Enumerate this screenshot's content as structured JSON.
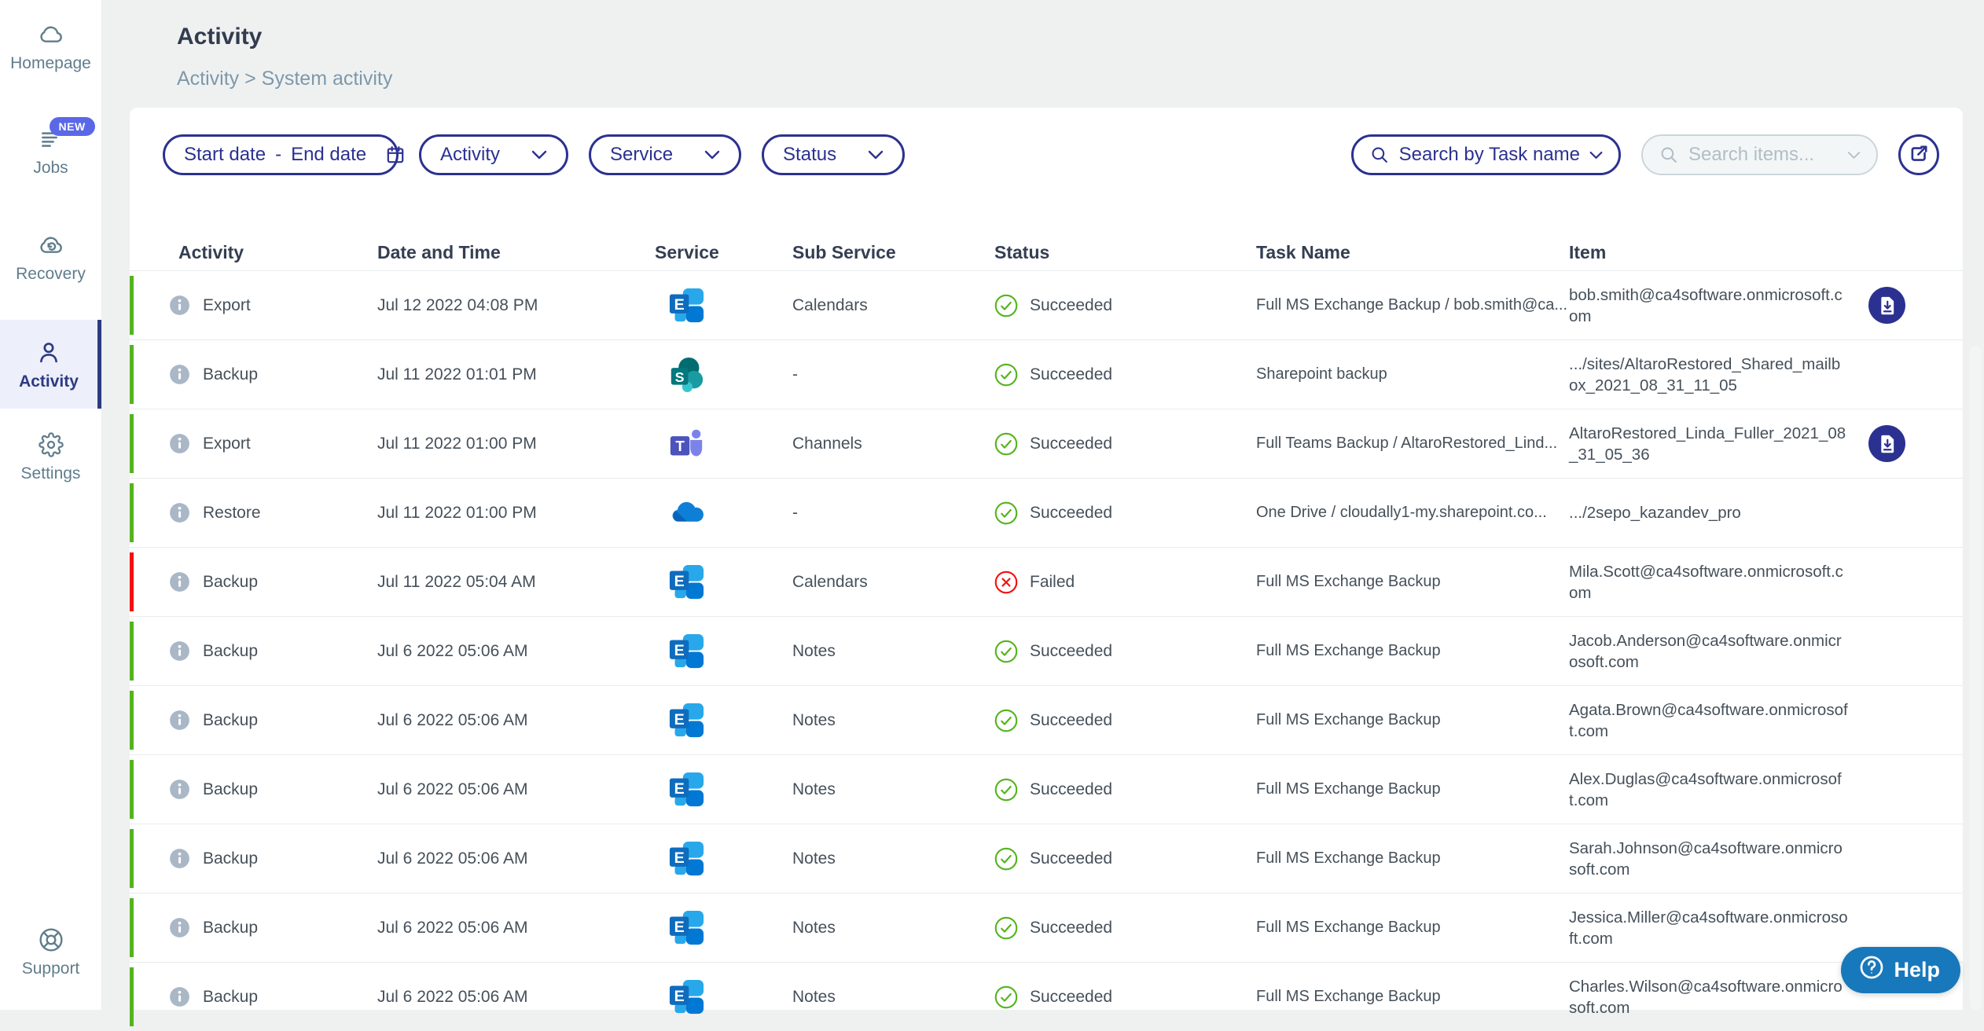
{
  "sidebar": {
    "items": [
      {
        "label": "Homepage",
        "icon": "cloud-icon",
        "badge": "",
        "active": false
      },
      {
        "label": "Jobs",
        "icon": "list-icon",
        "badge": "NEW",
        "active": false
      },
      {
        "label": "Recovery",
        "icon": "cloud-restore-icon",
        "badge": "",
        "active": false
      },
      {
        "label": "Activity",
        "icon": "person-icon",
        "badge": "",
        "active": true
      },
      {
        "label": "Settings",
        "icon": "gear-icon",
        "badge": "",
        "active": false
      }
    ],
    "footer_item": {
      "label": "Support",
      "icon": "lifebuoy-icon"
    }
  },
  "header": {
    "title": "Activity",
    "breadcrumb": "Activity > System activity"
  },
  "filters": {
    "date_start_label": "Start date",
    "date_separator": "-",
    "date_end_label": "End date",
    "activity_dropdown_label": "Activity",
    "service_dropdown_label": "Service",
    "status_dropdown_label": "Status",
    "task_search_label": "Search by Task name",
    "items_search_placeholder": "Search items...",
    "items_search_disabled": true
  },
  "table": {
    "columns": [
      "Activity",
      "Date and Time",
      "Service",
      "Sub Service",
      "Status",
      "Task Name",
      "Item"
    ],
    "rows": [
      {
        "activity": "Export",
        "datetime": "Jul 12 2022 04:08 PM",
        "service": "exchange",
        "sub_service": "Calendars",
        "status": "Succeeded",
        "status_type": "success",
        "task_name": "Full MS Exchange Backup / bob.smith@ca...",
        "item": "bob.smith@ca4software.onmicrosoft.com",
        "download": true
      },
      {
        "activity": "Backup",
        "datetime": "Jul 11 2022 01:01 PM",
        "service": "sharepoint",
        "sub_service": "-",
        "status": "Succeeded",
        "status_type": "success",
        "task_name": "Sharepoint backup",
        "item": ".../sites/AltaroRestored_Shared_mailbox_2021_08_31_11_05",
        "download": false
      },
      {
        "activity": "Export",
        "datetime": "Jul 11 2022 01:00 PM",
        "service": "teams",
        "sub_service": "Channels",
        "status": "Succeeded",
        "status_type": "success",
        "task_name": "Full Teams Backup / AltaroRestored_Lind...",
        "item": "AltaroRestored_Linda_Fuller_2021_08_31_05_36",
        "download": true
      },
      {
        "activity": "Restore",
        "datetime": "Jul 11 2022 01:00 PM",
        "service": "onedrive",
        "sub_service": "-",
        "status": "Succeeded",
        "status_type": "success",
        "task_name": "One Drive / cloudally1-my.sharepoint.co...",
        "item": ".../2sepo_kazandev_pro",
        "download": false
      },
      {
        "activity": "Backup",
        "datetime": "Jul 11 2022 05:04 AM",
        "service": "exchange",
        "sub_service": "Calendars",
        "status": "Failed",
        "status_type": "failed",
        "task_name": "Full MS Exchange Backup",
        "item": "Mila.Scott@ca4software.onmicrosoft.com",
        "download": false
      },
      {
        "activity": "Backup",
        "datetime": "Jul 6 2022 05:06 AM",
        "service": "exchange",
        "sub_service": "Notes",
        "status": "Succeeded",
        "status_type": "success",
        "task_name": "Full MS Exchange Backup",
        "item": "Jacob.Anderson@ca4software.onmicrosoft.com",
        "download": false
      },
      {
        "activity": "Backup",
        "datetime": "Jul 6 2022 05:06 AM",
        "service": "exchange",
        "sub_service": "Notes",
        "status": "Succeeded",
        "status_type": "success",
        "task_name": "Full MS Exchange Backup",
        "item": "Agata.Brown@ca4software.onmicrosoft.com",
        "download": false
      },
      {
        "activity": "Backup",
        "datetime": "Jul 6 2022 05:06 AM",
        "service": "exchange",
        "sub_service": "Notes",
        "status": "Succeeded",
        "status_type": "success",
        "task_name": "Full MS Exchange Backup",
        "item": "Alex.Duglas@ca4software.onmicrosoft.com",
        "download": false
      },
      {
        "activity": "Backup",
        "datetime": "Jul 6 2022 05:06 AM",
        "service": "exchange",
        "sub_service": "Notes",
        "status": "Succeeded",
        "status_type": "success",
        "task_name": "Full MS Exchange Backup",
        "item": "Sarah.Johnson@ca4software.onmicrosoft.com",
        "download": false
      },
      {
        "activity": "Backup",
        "datetime": "Jul 6 2022 05:06 AM",
        "service": "exchange",
        "sub_service": "Notes",
        "status": "Succeeded",
        "status_type": "success",
        "task_name": "Full MS Exchange Backup",
        "item": "Jessica.Miller@ca4software.onmicrosoft.com",
        "download": false
      },
      {
        "activity": "Backup",
        "datetime": "Jul 6 2022 05:06 AM",
        "service": "exchange",
        "sub_service": "Notes",
        "status": "Succeeded",
        "status_type": "success",
        "task_name": "Full MS Exchange Backup",
        "item": "Charles.Wilson@ca4software.onmicrosoft.com",
        "download": false
      }
    ]
  },
  "help_button": {
    "label": "Help"
  },
  "colors": {
    "navy": "#2b3191",
    "success_green": "#54b41d",
    "failed_red": "#f40f0f",
    "help_blue": "#1878bc",
    "new_badge_blue": "#5a68e8",
    "active_item_navy": "#2c3a82",
    "sidebar_gray": "#5f7d8c"
  }
}
